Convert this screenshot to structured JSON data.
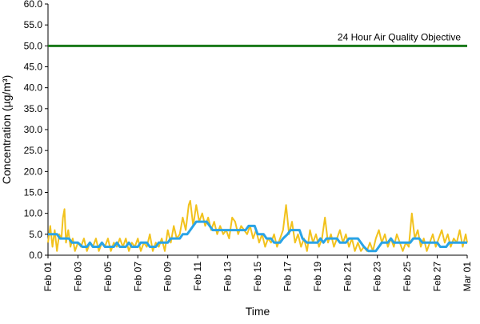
{
  "chart_data": {
    "type": "line",
    "title": "",
    "xlabel": "Time",
    "ylabel": "Concentration (µg/m³)",
    "ylim": [
      0,
      60
    ],
    "y_ticks": [
      "0.0",
      "5.0",
      "10.0",
      "15.0",
      "20.0",
      "25.0",
      "30.0",
      "35.0",
      "40.0",
      "45.0",
      "50.0",
      "55.0",
      "60.0"
    ],
    "x_ticks": [
      "Feb 01",
      "Feb 03",
      "Feb 05",
      "Feb 07",
      "Feb 09",
      "Feb 11",
      "Feb 13",
      "Feb 15",
      "Feb 17",
      "Feb 19",
      "Feb 21",
      "Feb 23",
      "Feb 25",
      "Feb 27",
      "Mar 01"
    ],
    "x_range_days": [
      0,
      28
    ],
    "grid": false,
    "objective": {
      "label": "24 Hour Air Quality Objective",
      "value": 50,
      "color": "#1a7a1a"
    },
    "series": [
      {
        "kind": "hourly",
        "color": "#f2c21d",
        "points": [
          [
            0.0,
            3
          ],
          [
            0.15,
            7
          ],
          [
            0.3,
            2
          ],
          [
            0.45,
            6
          ],
          [
            0.6,
            1
          ],
          [
            0.75,
            5
          ],
          [
            0.9,
            4
          ],
          [
            1.0,
            9
          ],
          [
            1.1,
            11
          ],
          [
            1.2,
            3
          ],
          [
            1.35,
            6
          ],
          [
            1.5,
            2
          ],
          [
            1.65,
            4
          ],
          [
            1.8,
            1
          ],
          [
            2.0,
            3
          ],
          [
            2.2,
            2
          ],
          [
            2.4,
            4
          ],
          [
            2.6,
            1
          ],
          [
            2.8,
            3
          ],
          [
            3.0,
            2
          ],
          [
            3.2,
            4
          ],
          [
            3.4,
            1
          ],
          [
            3.6,
            3
          ],
          [
            3.8,
            2
          ],
          [
            4.0,
            4
          ],
          [
            4.2,
            1
          ],
          [
            4.4,
            3
          ],
          [
            4.6,
            2
          ],
          [
            4.8,
            4
          ],
          [
            5.0,
            2
          ],
          [
            5.2,
            4
          ],
          [
            5.4,
            1
          ],
          [
            5.6,
            3
          ],
          [
            5.8,
            2
          ],
          [
            6.0,
            4
          ],
          [
            6.2,
            1
          ],
          [
            6.4,
            3
          ],
          [
            6.6,
            2
          ],
          [
            6.8,
            5
          ],
          [
            7.0,
            1
          ],
          [
            7.2,
            3
          ],
          [
            7.4,
            2
          ],
          [
            7.6,
            4
          ],
          [
            7.8,
            1
          ],
          [
            8.0,
            6
          ],
          [
            8.2,
            3
          ],
          [
            8.4,
            7
          ],
          [
            8.6,
            4
          ],
          [
            8.8,
            5
          ],
          [
            9.0,
            9
          ],
          [
            9.2,
            6
          ],
          [
            9.4,
            12
          ],
          [
            9.5,
            13
          ],
          [
            9.7,
            7
          ],
          [
            9.9,
            12
          ],
          [
            10.1,
            8
          ],
          [
            10.3,
            10
          ],
          [
            10.5,
            7
          ],
          [
            10.7,
            9
          ],
          [
            10.9,
            6
          ],
          [
            11.1,
            8
          ],
          [
            11.3,
            5
          ],
          [
            11.5,
            7
          ],
          [
            11.7,
            5
          ],
          [
            11.9,
            6
          ],
          [
            12.1,
            4
          ],
          [
            12.3,
            9
          ],
          [
            12.5,
            8
          ],
          [
            12.7,
            5
          ],
          [
            12.9,
            7
          ],
          [
            13.1,
            6
          ],
          [
            13.3,
            5
          ],
          [
            13.5,
            7
          ],
          [
            13.7,
            4
          ],
          [
            13.9,
            6
          ],
          [
            14.1,
            3
          ],
          [
            14.3,
            5
          ],
          [
            14.5,
            2
          ],
          [
            14.7,
            4
          ],
          [
            14.9,
            3
          ],
          [
            15.1,
            5
          ],
          [
            15.3,
            2
          ],
          [
            15.5,
            4
          ],
          [
            15.7,
            6
          ],
          [
            15.9,
            12
          ],
          [
            16.1,
            5
          ],
          [
            16.3,
            8
          ],
          [
            16.5,
            3
          ],
          [
            16.7,
            5
          ],
          [
            16.9,
            2
          ],
          [
            17.1,
            4
          ],
          [
            17.3,
            1
          ],
          [
            17.5,
            6
          ],
          [
            17.7,
            3
          ],
          [
            17.9,
            5
          ],
          [
            18.1,
            2
          ],
          [
            18.3,
            4
          ],
          [
            18.5,
            9
          ],
          [
            18.7,
            3
          ],
          [
            18.9,
            5
          ],
          [
            19.1,
            2
          ],
          [
            19.3,
            4
          ],
          [
            19.5,
            6
          ],
          [
            19.7,
            3
          ],
          [
            19.9,
            5
          ],
          [
            20.1,
            2
          ],
          [
            20.3,
            4
          ],
          [
            20.5,
            1
          ],
          [
            20.7,
            3
          ],
          [
            20.9,
            1
          ],
          [
            21.1,
            2
          ],
          [
            21.3,
            1
          ],
          [
            21.5,
            3
          ],
          [
            21.7,
            1
          ],
          [
            21.9,
            4
          ],
          [
            22.1,
            6
          ],
          [
            22.3,
            3
          ],
          [
            22.5,
            5
          ],
          [
            22.7,
            2
          ],
          [
            22.9,
            4
          ],
          [
            23.1,
            2
          ],
          [
            23.3,
            5
          ],
          [
            23.5,
            3
          ],
          [
            23.7,
            1
          ],
          [
            23.9,
            3
          ],
          [
            24.1,
            2
          ],
          [
            24.3,
            10
          ],
          [
            24.5,
            4
          ],
          [
            24.7,
            6
          ],
          [
            24.9,
            2
          ],
          [
            25.1,
            4
          ],
          [
            25.3,
            1
          ],
          [
            25.5,
            3
          ],
          [
            25.7,
            5
          ],
          [
            25.9,
            2
          ],
          [
            26.1,
            4
          ],
          [
            26.3,
            6
          ],
          [
            26.5,
            3
          ],
          [
            26.7,
            5
          ],
          [
            26.9,
            2
          ],
          [
            27.1,
            4
          ],
          [
            27.3,
            3
          ],
          [
            27.5,
            6
          ],
          [
            27.7,
            2
          ],
          [
            27.9,
            5
          ],
          [
            28.0,
            3
          ]
        ]
      },
      {
        "kind": "rolling",
        "color": "#2aa3e6",
        "points": [
          [
            0.0,
            5
          ],
          [
            0.6,
            5
          ],
          [
            0.8,
            4
          ],
          [
            1.4,
            4
          ],
          [
            1.6,
            3
          ],
          [
            2.0,
            3
          ],
          [
            2.3,
            2
          ],
          [
            2.6,
            2
          ],
          [
            2.8,
            3
          ],
          [
            3.0,
            2
          ],
          [
            3.4,
            2
          ],
          [
            3.6,
            3
          ],
          [
            3.8,
            2
          ],
          [
            4.4,
            2
          ],
          [
            4.6,
            3
          ],
          [
            4.8,
            2
          ],
          [
            5.2,
            2
          ],
          [
            5.4,
            3
          ],
          [
            5.6,
            2
          ],
          [
            6.0,
            2
          ],
          [
            6.2,
            3
          ],
          [
            6.6,
            3
          ],
          [
            6.8,
            2
          ],
          [
            7.2,
            2
          ],
          [
            7.4,
            3
          ],
          [
            8.0,
            3
          ],
          [
            8.2,
            4
          ],
          [
            8.8,
            4
          ],
          [
            9.0,
            5
          ],
          [
            9.3,
            5
          ],
          [
            9.5,
            6
          ],
          [
            9.7,
            7
          ],
          [
            9.9,
            8
          ],
          [
            10.6,
            8
          ],
          [
            10.8,
            7
          ],
          [
            11.0,
            6
          ],
          [
            13.2,
            6
          ],
          [
            13.4,
            7
          ],
          [
            13.8,
            7
          ],
          [
            14.0,
            5
          ],
          [
            14.4,
            5
          ],
          [
            14.6,
            4
          ],
          [
            14.9,
            4
          ],
          [
            15.1,
            3
          ],
          [
            15.5,
            3
          ],
          [
            15.7,
            4
          ],
          [
            16.0,
            5
          ],
          [
            16.2,
            6
          ],
          [
            16.8,
            6
          ],
          [
            17.0,
            4
          ],
          [
            17.3,
            3
          ],
          [
            18.0,
            3
          ],
          [
            18.2,
            4
          ],
          [
            18.4,
            3
          ],
          [
            18.6,
            4
          ],
          [
            19.3,
            4
          ],
          [
            19.5,
            3
          ],
          [
            19.9,
            3
          ],
          [
            20.1,
            4
          ],
          [
            20.7,
            4
          ],
          [
            20.9,
            3
          ],
          [
            21.1,
            2
          ],
          [
            21.4,
            1
          ],
          [
            21.9,
            1
          ],
          [
            22.1,
            2
          ],
          [
            22.3,
            3
          ],
          [
            22.7,
            3
          ],
          [
            22.9,
            4
          ],
          [
            23.1,
            3
          ],
          [
            24.2,
            3
          ],
          [
            24.4,
            4
          ],
          [
            24.8,
            4
          ],
          [
            25.0,
            3
          ],
          [
            26.0,
            3
          ],
          [
            26.2,
            2
          ],
          [
            26.6,
            2
          ],
          [
            26.8,
            3
          ],
          [
            27.8,
            3
          ],
          [
            28.0,
            3
          ]
        ]
      }
    ]
  }
}
